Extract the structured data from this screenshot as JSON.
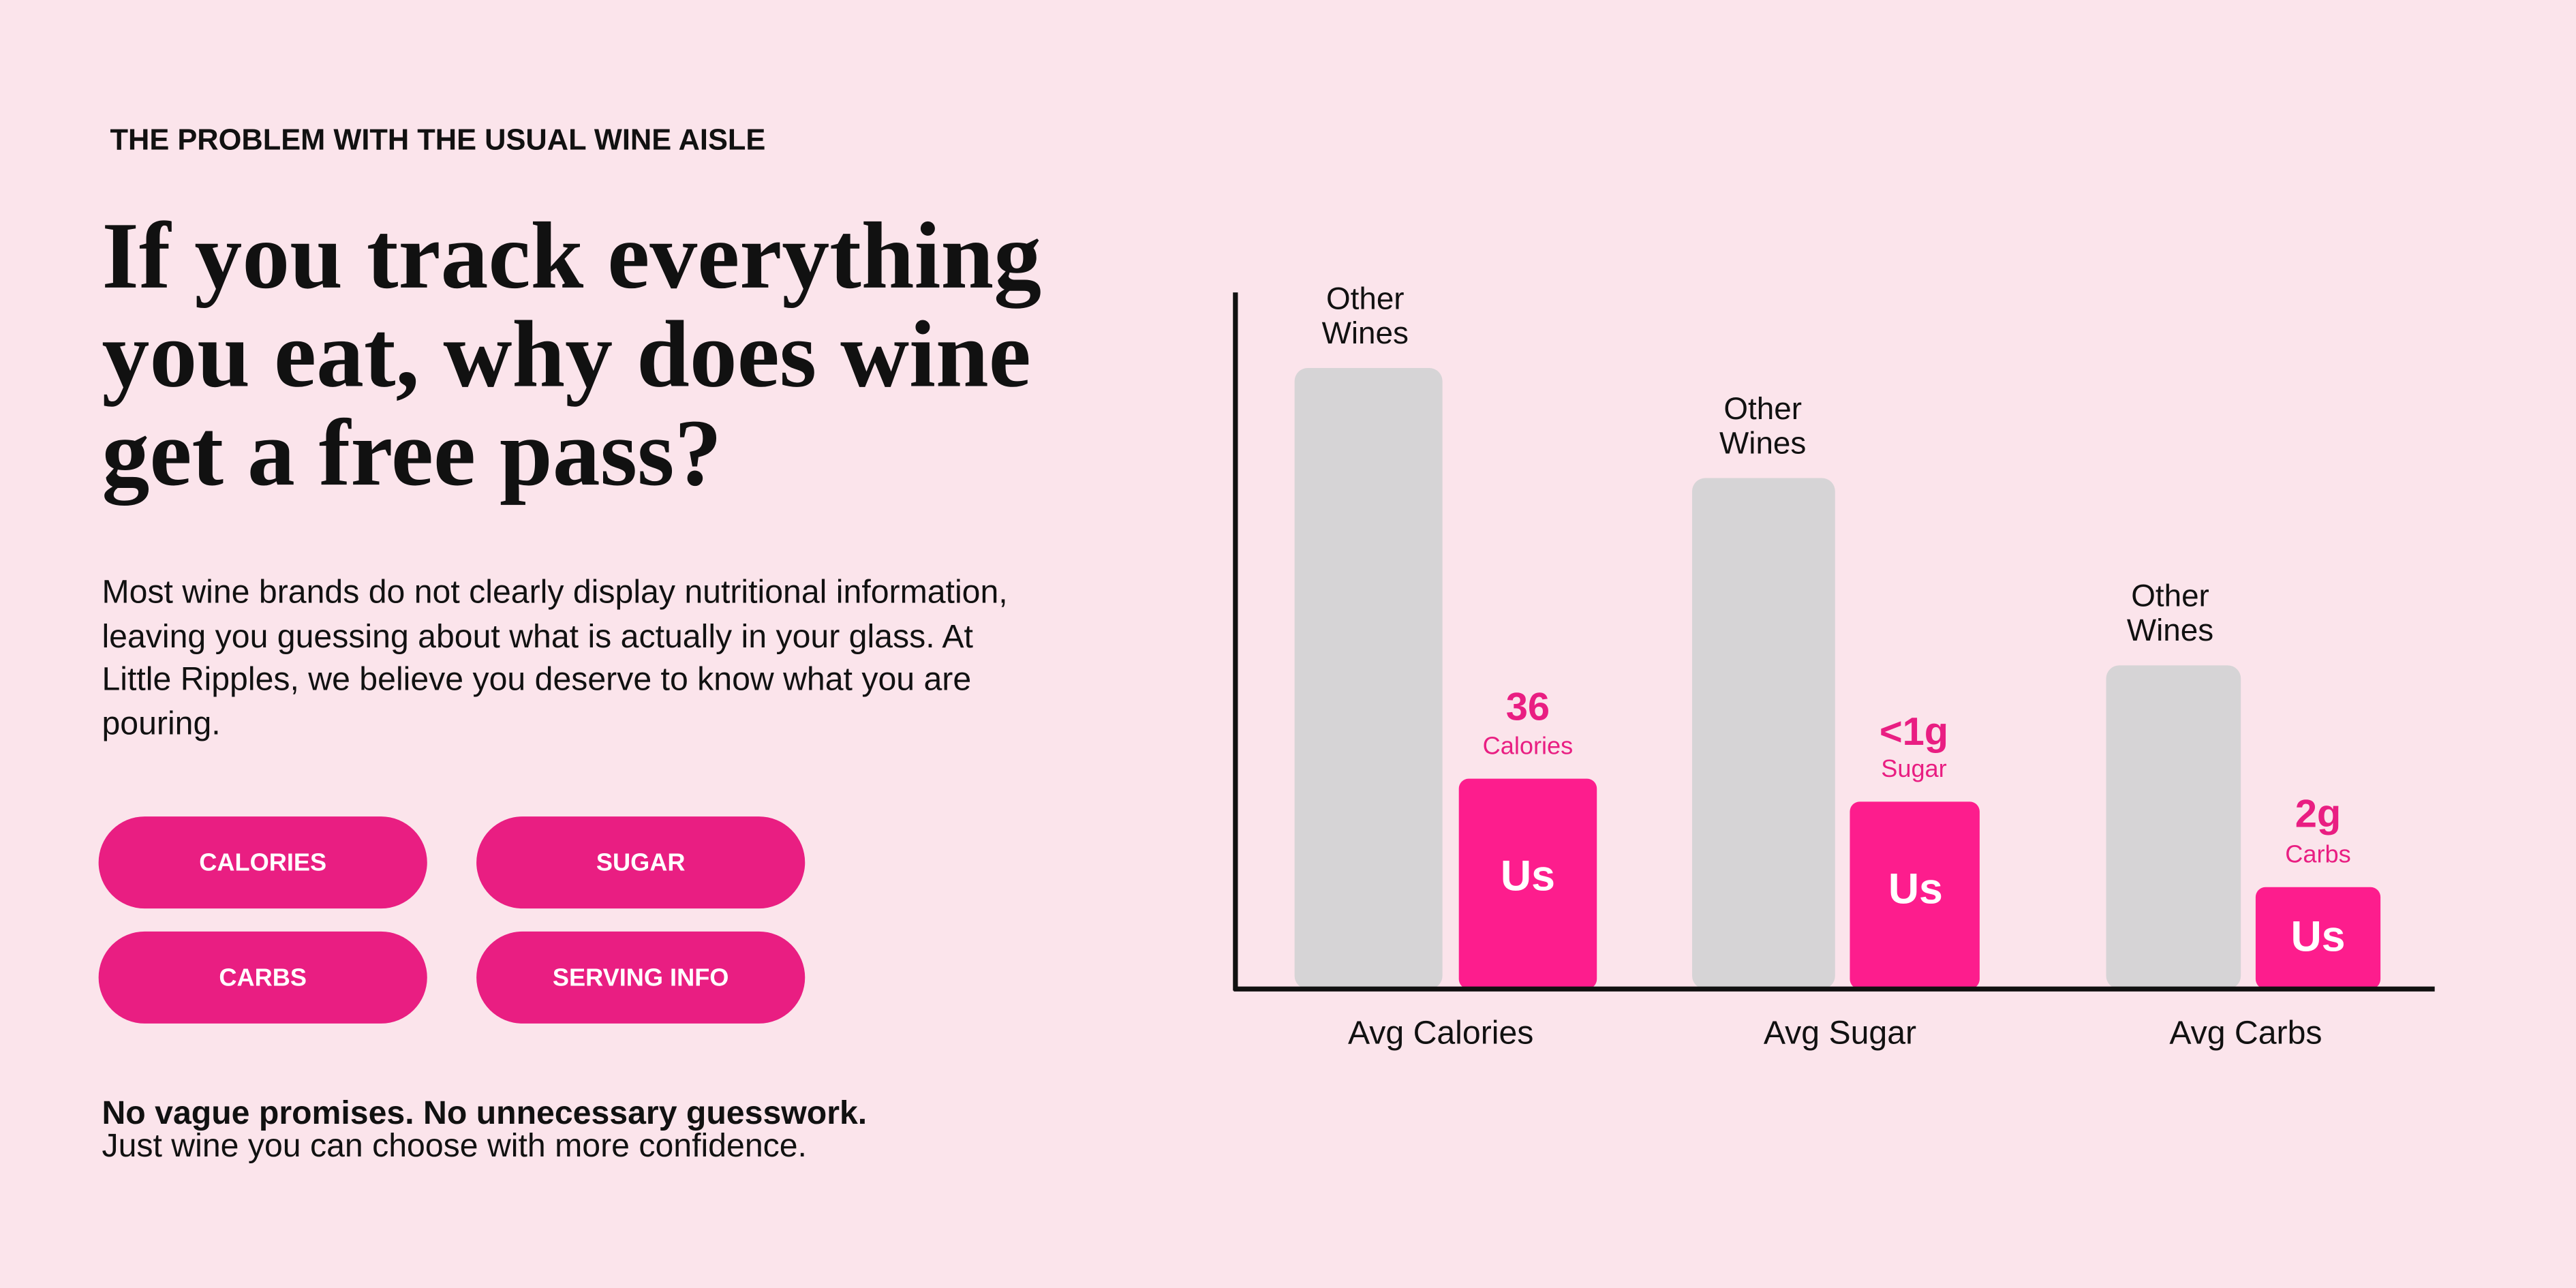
{
  "header": {
    "eyebrow": "THE PROBLEM WITH THE USUAL WINE AISLE",
    "headline": [
      "If you track everything",
      "you eat, why does wine",
      "get a free pass?"
    ],
    "body": "Most wine brands do not clearly display nutritional information, leaving you guessing about what is actually in your glass. At Little Ripples, we believe you deserve to know what you are pouring."
  },
  "buttons": [
    "CALORIES",
    "SUGAR",
    "CARBS",
    "SERVING INFO"
  ],
  "footer": {
    "bold": "No vague promises. No unnecessary guesswork.",
    "text": "Just wine you can choose with more confidence."
  },
  "chart": {
    "groups": [
      {
        "category": "Avg Calories",
        "other_label": [
          "Other",
          "Wines"
        ],
        "us_label": "Us",
        "us_value": "36",
        "us_unit": "Calories"
      },
      {
        "category": "Avg Sugar",
        "other_label": [
          "Other",
          "Wines"
        ],
        "us_label": "Us",
        "us_value": "<1g",
        "us_unit": "Sugar"
      },
      {
        "category": "Avg Carbs",
        "other_label": [
          "Other",
          "Wines"
        ],
        "us_label": "Us",
        "us_value": "2g",
        "us_unit": "Carbs"
      }
    ]
  }
}
